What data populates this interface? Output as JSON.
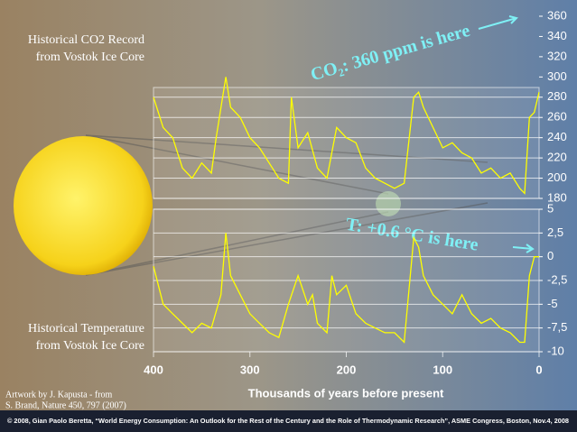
{
  "chart_data": [
    {
      "type": "line",
      "title": [
        "Historical CO2 Record",
        "from Vostok Ice Core"
      ],
      "annotation": "CO₂: 360 ppm is here",
      "color": "#ffff00",
      "x": [
        400,
        390,
        380,
        370,
        360,
        350,
        340,
        335,
        325,
        320,
        310,
        300,
        290,
        280,
        270,
        260,
        257,
        250,
        240,
        230,
        220,
        210,
        200,
        190,
        180,
        170,
        160,
        150,
        140,
        130,
        125,
        120,
        110,
        100,
        90,
        80,
        70,
        60,
        50,
        40,
        30,
        20,
        15,
        10,
        5,
        0
      ],
      "values": [
        280,
        250,
        240,
        210,
        200,
        215,
        205,
        240,
        300,
        270,
        260,
        240,
        230,
        215,
        200,
        195,
        280,
        230,
        245,
        210,
        200,
        250,
        240,
        235,
        210,
        200,
        195,
        190,
        195,
        280,
        285,
        270,
        250,
        230,
        235,
        225,
        220,
        205,
        210,
        200,
        205,
        190,
        185,
        260,
        265,
        285
      ],
      "ylim": [
        180,
        360
      ],
      "yticks": [
        180,
        200,
        220,
        240,
        260,
        280,
        300,
        320,
        340,
        360
      ],
      "grid": true
    },
    {
      "type": "line",
      "title": [
        "Historical Temperature",
        "from Vostok Ice Core"
      ],
      "annotation": "T: +0.6 °C is here",
      "color": "#ffff00",
      "x": [
        400,
        390,
        380,
        370,
        360,
        350,
        340,
        330,
        325,
        320,
        310,
        300,
        290,
        280,
        270,
        260,
        250,
        240,
        235,
        230,
        220,
        215,
        210,
        200,
        190,
        180,
        170,
        160,
        150,
        140,
        130,
        125,
        120,
        110,
        100,
        90,
        80,
        70,
        60,
        50,
        40,
        30,
        20,
        15,
        10,
        5,
        0
      ],
      "values": [
        -1,
        -5,
        -6,
        -7,
        -8,
        -7,
        -7.5,
        -4,
        2.5,
        -2,
        -4,
        -6,
        -7,
        -8,
        -8.5,
        -5,
        -2,
        -5,
        -4,
        -7,
        -8,
        -2,
        -4,
        -3,
        -6,
        -7,
        -7.5,
        -8,
        -8,
        -9,
        2,
        1,
        -2,
        -4,
        -5,
        -6,
        -4,
        -6,
        -7,
        -6.5,
        -7.5,
        -8,
        -9,
        -9,
        -2,
        0,
        0
      ],
      "ylim": [
        -10,
        5
      ],
      "yticks": [
        5,
        {
          "value": 2.5,
          "label": "2,5"
        },
        0,
        {
          "value": -2.5,
          "label": "-2,5"
        },
        -5,
        {
          "value": -7.5,
          "label": "-7,5"
        },
        -10
      ],
      "grid": true,
      "xlim": [
        400,
        0
      ],
      "xticks": [
        400,
        300,
        200,
        100,
        0
      ],
      "xlabel": "Thousands of years before present"
    }
  ],
  "credits": {
    "artwork": [
      "Artwork by J. Kapusta - from",
      "S. Brand, Nature 450, 797 (2007)"
    ],
    "footer": "© 2008, Gian Paolo Beretta, “World Energy Consumption: An Outlook for the Rest of the Century and the Role of Thermodynamic Research”, ASME Congress, Boston, Nov.4, 2008"
  }
}
